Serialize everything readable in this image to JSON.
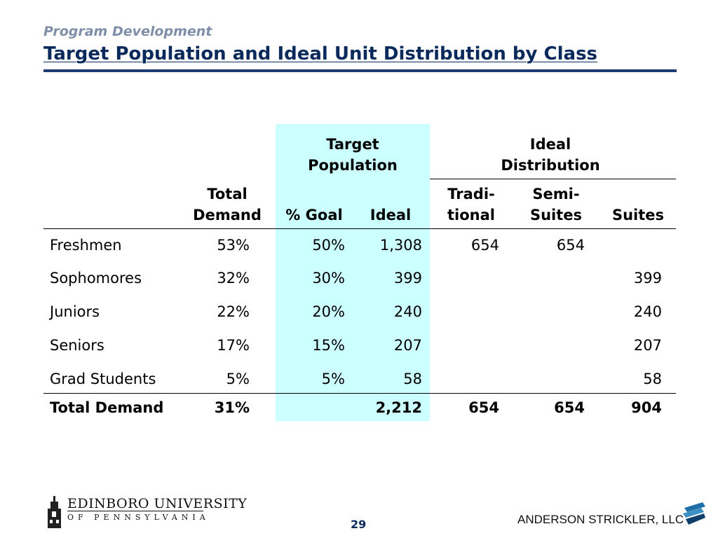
{
  "header": {
    "subtitle": "Program Development",
    "title": "Target Population and Ideal Unit Distribution by Class"
  },
  "table": {
    "group_headers": {
      "target_population": "Target Population",
      "ideal_distribution": "Ideal Distribution"
    },
    "column_headers": {
      "total_demand_line1": "Total",
      "total_demand_line2": "Demand",
      "goal": "% Goal",
      "ideal": "Ideal",
      "traditional_line1": "Tradi-",
      "traditional_line2": "tional",
      "semi_suites_line1": "Semi-",
      "semi_suites_line2": "Suites",
      "suites": "Suites"
    },
    "rows": [
      {
        "label": "Freshmen",
        "total_demand": "53%",
        "goal": "50%",
        "ideal": "1,308",
        "traditional": "654",
        "semi_suites": "654",
        "suites": ""
      },
      {
        "label": "Sophomores",
        "total_demand": "32%",
        "goal": "30%",
        "ideal": "399",
        "traditional": "",
        "semi_suites": "",
        "suites": "399"
      },
      {
        "label": "Juniors",
        "total_demand": "22%",
        "goal": "20%",
        "ideal": "240",
        "traditional": "",
        "semi_suites": "",
        "suites": "240"
      },
      {
        "label": "Seniors",
        "total_demand": "17%",
        "goal": "15%",
        "ideal": "207",
        "traditional": "",
        "semi_suites": "",
        "suites": "207"
      },
      {
        "label": "Grad Students",
        "total_demand": "5%",
        "goal": "5%",
        "ideal": "58",
        "traditional": "",
        "semi_suites": "",
        "suites": "58"
      }
    ],
    "total": {
      "label": "Total Demand",
      "total_demand": "31%",
      "goal": "",
      "ideal": "2,212",
      "traditional": "654",
      "semi_suites": "654",
      "suites": "904"
    }
  },
  "footer": {
    "university_name": "EDINBORO UNIVERSITY",
    "university_sub": "OF PENNSYLVANIA",
    "page_number": "29",
    "company": "ANDERSON STRICKLER, LLC"
  },
  "colors": {
    "title": "#0b2a5c",
    "subtitle": "#7f8fa9",
    "rule": "#1f3b73",
    "target_band": "#ccffff"
  }
}
